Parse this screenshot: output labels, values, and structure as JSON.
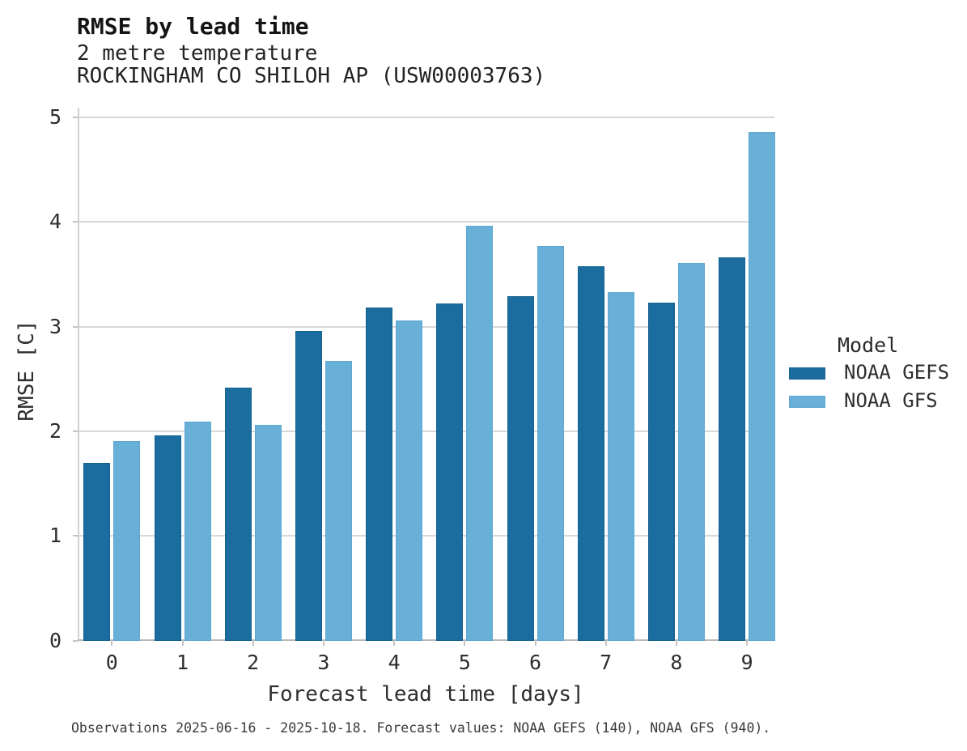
{
  "header": {
    "title": "RMSE by lead time",
    "subtitle1": "2 metre temperature",
    "subtitle2": "ROCKINGHAM CO SHILOH AP (USW00003763)"
  },
  "chart_data": {
    "type": "bar",
    "title": "RMSE by lead time",
    "subtitle": [
      "2 metre temperature",
      "ROCKINGHAM CO SHILOH AP (USW00003763)"
    ],
    "categories": [
      "0",
      "1",
      "2",
      "3",
      "4",
      "5",
      "6",
      "7",
      "8",
      "9"
    ],
    "series": [
      {
        "name": "NOAA GEFS",
        "color": "#1a6d9e",
        "edge": "#15618e",
        "values": [
          1.7,
          1.96,
          2.42,
          2.96,
          3.18,
          3.22,
          3.29,
          3.58,
          3.23,
          3.66
        ]
      },
      {
        "name": "NOAA GFS",
        "color": "#69b0d8",
        "edge": "#5ea7d2",
        "values": [
          1.91,
          2.09,
          2.06,
          2.67,
          3.06,
          3.96,
          3.77,
          3.33,
          3.61,
          4.86
        ]
      }
    ],
    "xlabel": "Forecast lead time [days]",
    "ylabel": "RMSE [C]",
    "ylim": [
      0,
      5.1
    ],
    "yticks": [
      0,
      1,
      2,
      3,
      4,
      5
    ],
    "grid": true,
    "legend_title": "Model",
    "legend_position": "right-of-plot"
  },
  "legend": {
    "title": "Model",
    "items": [
      {
        "label": "NOAA GEFS",
        "color": "#1a6d9e"
      },
      {
        "label": "NOAA GFS",
        "color": "#69b0d8"
      }
    ]
  },
  "footer": {
    "note": "Observations 2025-06-16 - 2025-10-18. Forecast values: NOAA GEFS (140), NOAA GFS (940)."
  }
}
